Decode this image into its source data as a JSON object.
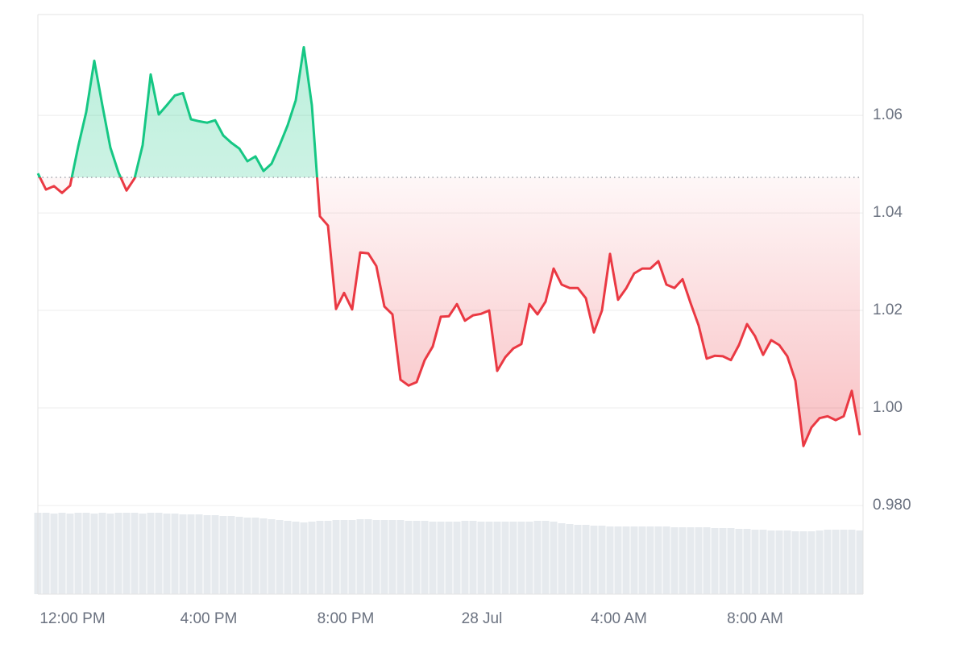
{
  "chart_data": {
    "type": "line",
    "baseline": 1.0473,
    "up_color": "#16c784",
    "down_color": "#ea3943",
    "grid": true,
    "xlim": [
      0,
      102
    ],
    "xticks": [
      {
        "value": 4.3,
        "label": "12:00 PM"
      },
      {
        "value": 21.2,
        "label": "4:00 PM"
      },
      {
        "value": 38.2,
        "label": "8:00 PM"
      },
      {
        "value": 55.1,
        "label": "28 Jul"
      },
      {
        "value": 72.1,
        "label": "4:00 AM"
      },
      {
        "value": 89.0,
        "label": "8:00 AM"
      }
    ],
    "ylim": [
      0.9618,
      1.0807
    ],
    "yticks": [
      {
        "value": 0.98,
        "label": "0.980"
      },
      {
        "value": 1,
        "label": "1.00"
      },
      1.02,
      1.04,
      1.06
    ],
    "values": [
      1.0481,
      1.0448,
      1.0455,
      1.0441,
      1.0456,
      1.0536,
      1.0607,
      1.0712,
      1.0621,
      1.0534,
      1.0483,
      1.0446,
      1.0471,
      1.0539,
      1.0684,
      1.0602,
      1.0621,
      1.0641,
      1.0646,
      1.0592,
      1.0588,
      1.0585,
      1.059,
      1.0559,
      1.0544,
      1.0532,
      1.0506,
      1.0516,
      1.0486,
      1.0501,
      1.0539,
      1.058,
      1.0631,
      1.074,
      1.0621,
      1.0393,
      1.0374,
      1.0203,
      1.0236,
      1.0202,
      1.0319,
      1.0317,
      1.0291,
      1.0208,
      1.0192,
      1.0058,
      1.0046,
      1.0053,
      1.0098,
      1.0126,
      1.0187,
      1.0188,
      1.0213,
      1.0179,
      1.019,
      1.0193,
      1.02,
      1.0076,
      1.0104,
      1.0122,
      1.0131,
      1.0213,
      1.0192,
      1.0218,
      1.0286,
      1.0253,
      1.0246,
      1.0246,
      1.0225,
      1.0155,
      1.02,
      1.0316,
      1.0222,
      1.0245,
      1.0276,
      1.0286,
      1.0286,
      1.0301,
      1.0253,
      1.0246,
      1.0264,
      1.0215,
      1.0169,
      1.0101,
      1.0107,
      1.0106,
      1.0098,
      1.0129,
      1.0172,
      1.0147,
      1.0109,
      1.0139,
      1.0129,
      1.0106,
      1.0056,
      0.9922,
      0.996,
      0.9979,
      0.9983,
      0.9975,
      0.9983,
      1.0035,
      0.9944
    ],
    "volume": {
      "color": "#e6eaee",
      "ylim": [
        0,
        101
      ],
      "values": [
        101,
        101,
        100,
        101,
        100,
        101,
        101,
        100,
        101,
        100,
        101,
        101,
        101,
        100,
        101,
        101,
        100,
        100,
        99,
        99,
        99,
        98,
        98,
        97,
        97,
        96,
        95,
        95,
        94,
        93,
        92,
        91,
        90,
        89,
        90,
        91,
        91,
        92,
        92,
        92,
        93,
        93,
        92,
        92,
        92,
        92,
        91,
        91,
        91,
        90,
        90,
        90,
        90,
        91,
        91,
        90,
        90,
        90,
        90,
        90,
        90,
        90,
        91,
        91,
        90,
        88,
        87,
        86,
        86,
        85,
        85,
        84,
        84,
        84,
        84,
        84,
        84,
        84,
        84,
        83,
        83,
        83,
        83,
        83,
        82,
        82,
        82,
        81,
        81,
        80,
        80,
        79,
        79,
        79,
        78,
        78,
        78,
        79,
        80,
        80,
        80,
        80,
        79
      ]
    }
  }
}
